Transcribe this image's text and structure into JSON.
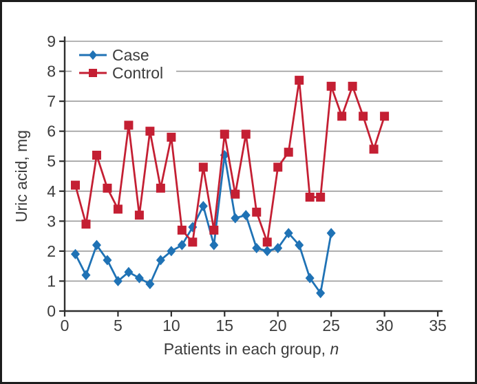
{
  "figure": {
    "background": "#ffffff",
    "border_color": "#1d1d1d"
  },
  "chart_data": {
    "type": "line",
    "title": "",
    "xlabel": "Patients in each group, ",
    "xlabel_italic_suffix": "n",
    "ylabel": "Uric acid, mg",
    "xlim": [
      0,
      35
    ],
    "ylim": [
      0,
      9
    ],
    "x_ticks": [
      0,
      5,
      10,
      15,
      20,
      25,
      30,
      35
    ],
    "y_ticks": [
      0,
      1,
      2,
      3,
      4,
      5,
      6,
      7,
      8,
      9
    ],
    "grid": "horizontal",
    "legend_position": "top-left",
    "legend": [
      "Case",
      "Control"
    ],
    "series": [
      {
        "name": "Case",
        "marker": "diamond",
        "color": "#1F72B5",
        "x": [
          1,
          2,
          3,
          4,
          5,
          6,
          7,
          8,
          9,
          10,
          11,
          12,
          13,
          14,
          15,
          16,
          17,
          18,
          19,
          20,
          21,
          22,
          23,
          24,
          25
        ],
        "values": [
          1.9,
          1.2,
          2.2,
          1.7,
          1.0,
          1.3,
          1.1,
          0.9,
          1.7,
          2.0,
          2.2,
          2.8,
          3.5,
          2.2,
          5.2,
          3.1,
          3.2,
          2.1,
          2.0,
          2.1,
          2.6,
          2.2,
          1.1,
          0.6,
          2.6
        ]
      },
      {
        "name": "Control",
        "marker": "square",
        "color": "#C41F33",
        "x": [
          1,
          2,
          3,
          4,
          5,
          6,
          7,
          8,
          9,
          10,
          11,
          12,
          13,
          14,
          15,
          16,
          17,
          18,
          19,
          20,
          21,
          22,
          23,
          24,
          25,
          26,
          27,
          28,
          29,
          30
        ],
        "values": [
          4.2,
          2.9,
          5.2,
          4.1,
          3.4,
          6.2,
          3.2,
          6.0,
          4.1,
          5.8,
          2.7,
          2.3,
          4.8,
          2.7,
          5.9,
          3.9,
          5.9,
          3.3,
          2.3,
          4.8,
          5.3,
          7.7,
          3.8,
          3.8,
          7.5,
          6.5,
          7.5,
          6.5,
          5.4,
          6.5
        ]
      }
    ],
    "colors": {
      "grid": "#9b9b9b",
      "axis": "#2e2e2e",
      "text": "#3c3c3c",
      "legend_background": "#ffffff"
    }
  }
}
